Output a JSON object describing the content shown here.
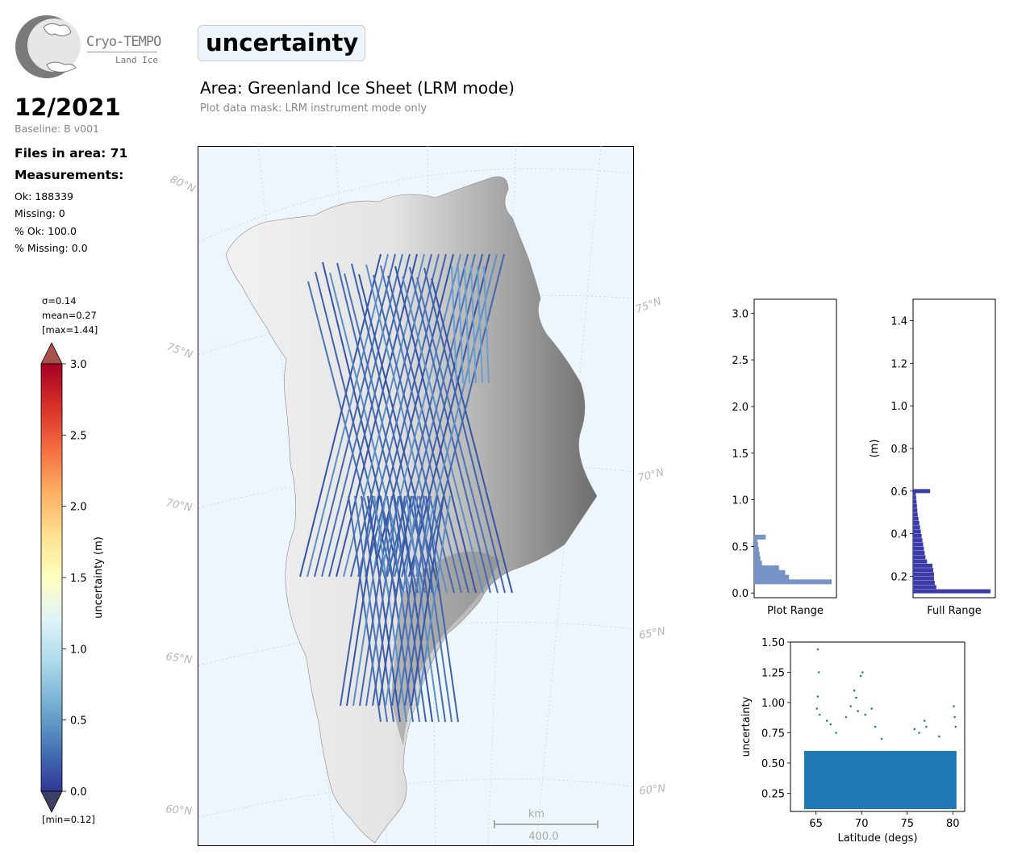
{
  "logo": {
    "name": "Cryo-TEMPO",
    "subtitle": "Land Ice"
  },
  "header": {
    "parameter": "uncertainty",
    "area": "Area: Greenland Ice Sheet (LRM mode)",
    "mask": "Plot data mask: LRM instrument mode only"
  },
  "info": {
    "date": "12/2021",
    "baseline": "Baseline: B v001",
    "files": "Files in area: 71",
    "measurements_label": "Measurements:",
    "ok": "Ok: 188339",
    "missing": "Missing: 0",
    "pct_ok": "% Ok: 100.0",
    "pct_missing": "% Missing: 0.0"
  },
  "colorbar": {
    "sigma": "σ=0.14",
    "mean": "mean=0.27",
    "max": "[max=1.44]",
    "min": "[min=0.12]",
    "label": "uncertainty (m)",
    "ticks": [
      "0.0",
      "0.5",
      "1.0",
      "1.5",
      "2.0",
      "2.5",
      "3.0"
    ],
    "range": [
      0,
      3
    ],
    "colormap": "RdYlBu_r"
  },
  "map": {
    "lat_labels_left": [
      "80°N",
      "75°N",
      "70°N",
      "65°N",
      "60°N"
    ],
    "lat_labels_right": [
      "75°N",
      "70°N",
      "65°N",
      "60°N"
    ],
    "scale_unit": "km",
    "scale_value": "400.0",
    "background": "#eef6fd"
  },
  "chart_data": [
    {
      "type": "bar",
      "orientation": "horizontal",
      "xlabel": "Plot Range",
      "ylim": [
        -0.05,
        3.15
      ],
      "yticks": [
        "0.0",
        "0.5",
        "1.0",
        "1.5",
        "2.0",
        "2.5",
        "3.0"
      ],
      "bins": [
        {
          "y": 0.12,
          "count": 1.0
        },
        {
          "y": 0.17,
          "count": 0.45
        },
        {
          "y": 0.22,
          "count": 0.4
        },
        {
          "y": 0.27,
          "count": 0.32
        },
        {
          "y": 0.32,
          "count": 0.1
        },
        {
          "y": 0.37,
          "count": 0.08
        },
        {
          "y": 0.42,
          "count": 0.07
        },
        {
          "y": 0.47,
          "count": 0.06
        },
        {
          "y": 0.52,
          "count": 0.05
        },
        {
          "y": 0.57,
          "count": 0.04
        },
        {
          "y": 0.6,
          "count": 0.15
        }
      ]
    },
    {
      "type": "bar",
      "orientation": "horizontal",
      "xlabel": "Full Range",
      "ylabel": "(m)",
      "ylim": [
        0.1,
        1.5
      ],
      "yticks": [
        "0.2",
        "0.4",
        "0.6",
        "0.8",
        "1.0",
        "1.2",
        "1.4"
      ],
      "bins": [
        {
          "y": 0.13,
          "count": 1.0
        },
        {
          "y": 0.15,
          "count": 0.3
        },
        {
          "y": 0.17,
          "count": 0.28
        },
        {
          "y": 0.19,
          "count": 0.27
        },
        {
          "y": 0.21,
          "count": 0.27
        },
        {
          "y": 0.23,
          "count": 0.26
        },
        {
          "y": 0.25,
          "count": 0.25
        },
        {
          "y": 0.27,
          "count": 0.18
        },
        {
          "y": 0.29,
          "count": 0.16
        },
        {
          "y": 0.31,
          "count": 0.15
        },
        {
          "y": 0.33,
          "count": 0.14
        },
        {
          "y": 0.35,
          "count": 0.13
        },
        {
          "y": 0.37,
          "count": 0.12
        },
        {
          "y": 0.39,
          "count": 0.11
        },
        {
          "y": 0.41,
          "count": 0.1
        },
        {
          "y": 0.43,
          "count": 0.09
        },
        {
          "y": 0.45,
          "count": 0.08
        },
        {
          "y": 0.47,
          "count": 0.07
        },
        {
          "y": 0.49,
          "count": 0.06
        },
        {
          "y": 0.51,
          "count": 0.055
        },
        {
          "y": 0.53,
          "count": 0.05
        },
        {
          "y": 0.55,
          "count": 0.045
        },
        {
          "y": 0.57,
          "count": 0.04
        },
        {
          "y": 0.59,
          "count": 0.035
        },
        {
          "y": 0.6,
          "count": 0.22
        }
      ]
    },
    {
      "type": "scatter",
      "xlabel": "Latitude (degs)",
      "ylabel": "uncertainty",
      "xlim": [
        62.2,
        81.3
      ],
      "ylim": [
        0.1,
        1.5
      ],
      "xticks": [
        "65",
        "70",
        "75",
        "80"
      ],
      "yticks": [
        "0.25",
        "0.50",
        "0.75",
        "1.00",
        "1.25",
        "1.50"
      ],
      "color": "#1f77b4",
      "band": {
        "x": [
          63.7,
          80.4
        ],
        "y": [
          0.12,
          0.6
        ]
      },
      "outliers": [
        {
          "x": 65.2,
          "y": 1.44
        },
        {
          "x": 65.3,
          "y": 1.25
        },
        {
          "x": 65.2,
          "y": 1.05
        },
        {
          "x": 65.1,
          "y": 0.95
        },
        {
          "x": 65.4,
          "y": 0.9
        },
        {
          "x": 66.2,
          "y": 0.85
        },
        {
          "x": 66.6,
          "y": 0.82
        },
        {
          "x": 67.2,
          "y": 0.75
        },
        {
          "x": 68.3,
          "y": 0.88
        },
        {
          "x": 68.8,
          "y": 0.97
        },
        {
          "x": 69.2,
          "y": 1.1
        },
        {
          "x": 69.4,
          "y": 1.04
        },
        {
          "x": 69.6,
          "y": 0.93
        },
        {
          "x": 69.9,
          "y": 1.22
        },
        {
          "x": 70.1,
          "y": 1.25
        },
        {
          "x": 70.4,
          "y": 0.9
        },
        {
          "x": 71.1,
          "y": 0.95
        },
        {
          "x": 71.5,
          "y": 0.8
        },
        {
          "x": 72.2,
          "y": 0.7
        },
        {
          "x": 75.8,
          "y": 0.78
        },
        {
          "x": 76.3,
          "y": 0.75
        },
        {
          "x": 76.9,
          "y": 0.85
        },
        {
          "x": 77.1,
          "y": 0.8
        },
        {
          "x": 78.5,
          "y": 0.72
        },
        {
          "x": 80.1,
          "y": 0.97
        },
        {
          "x": 80.2,
          "y": 0.88
        },
        {
          "x": 80.3,
          "y": 0.8
        }
      ]
    }
  ]
}
